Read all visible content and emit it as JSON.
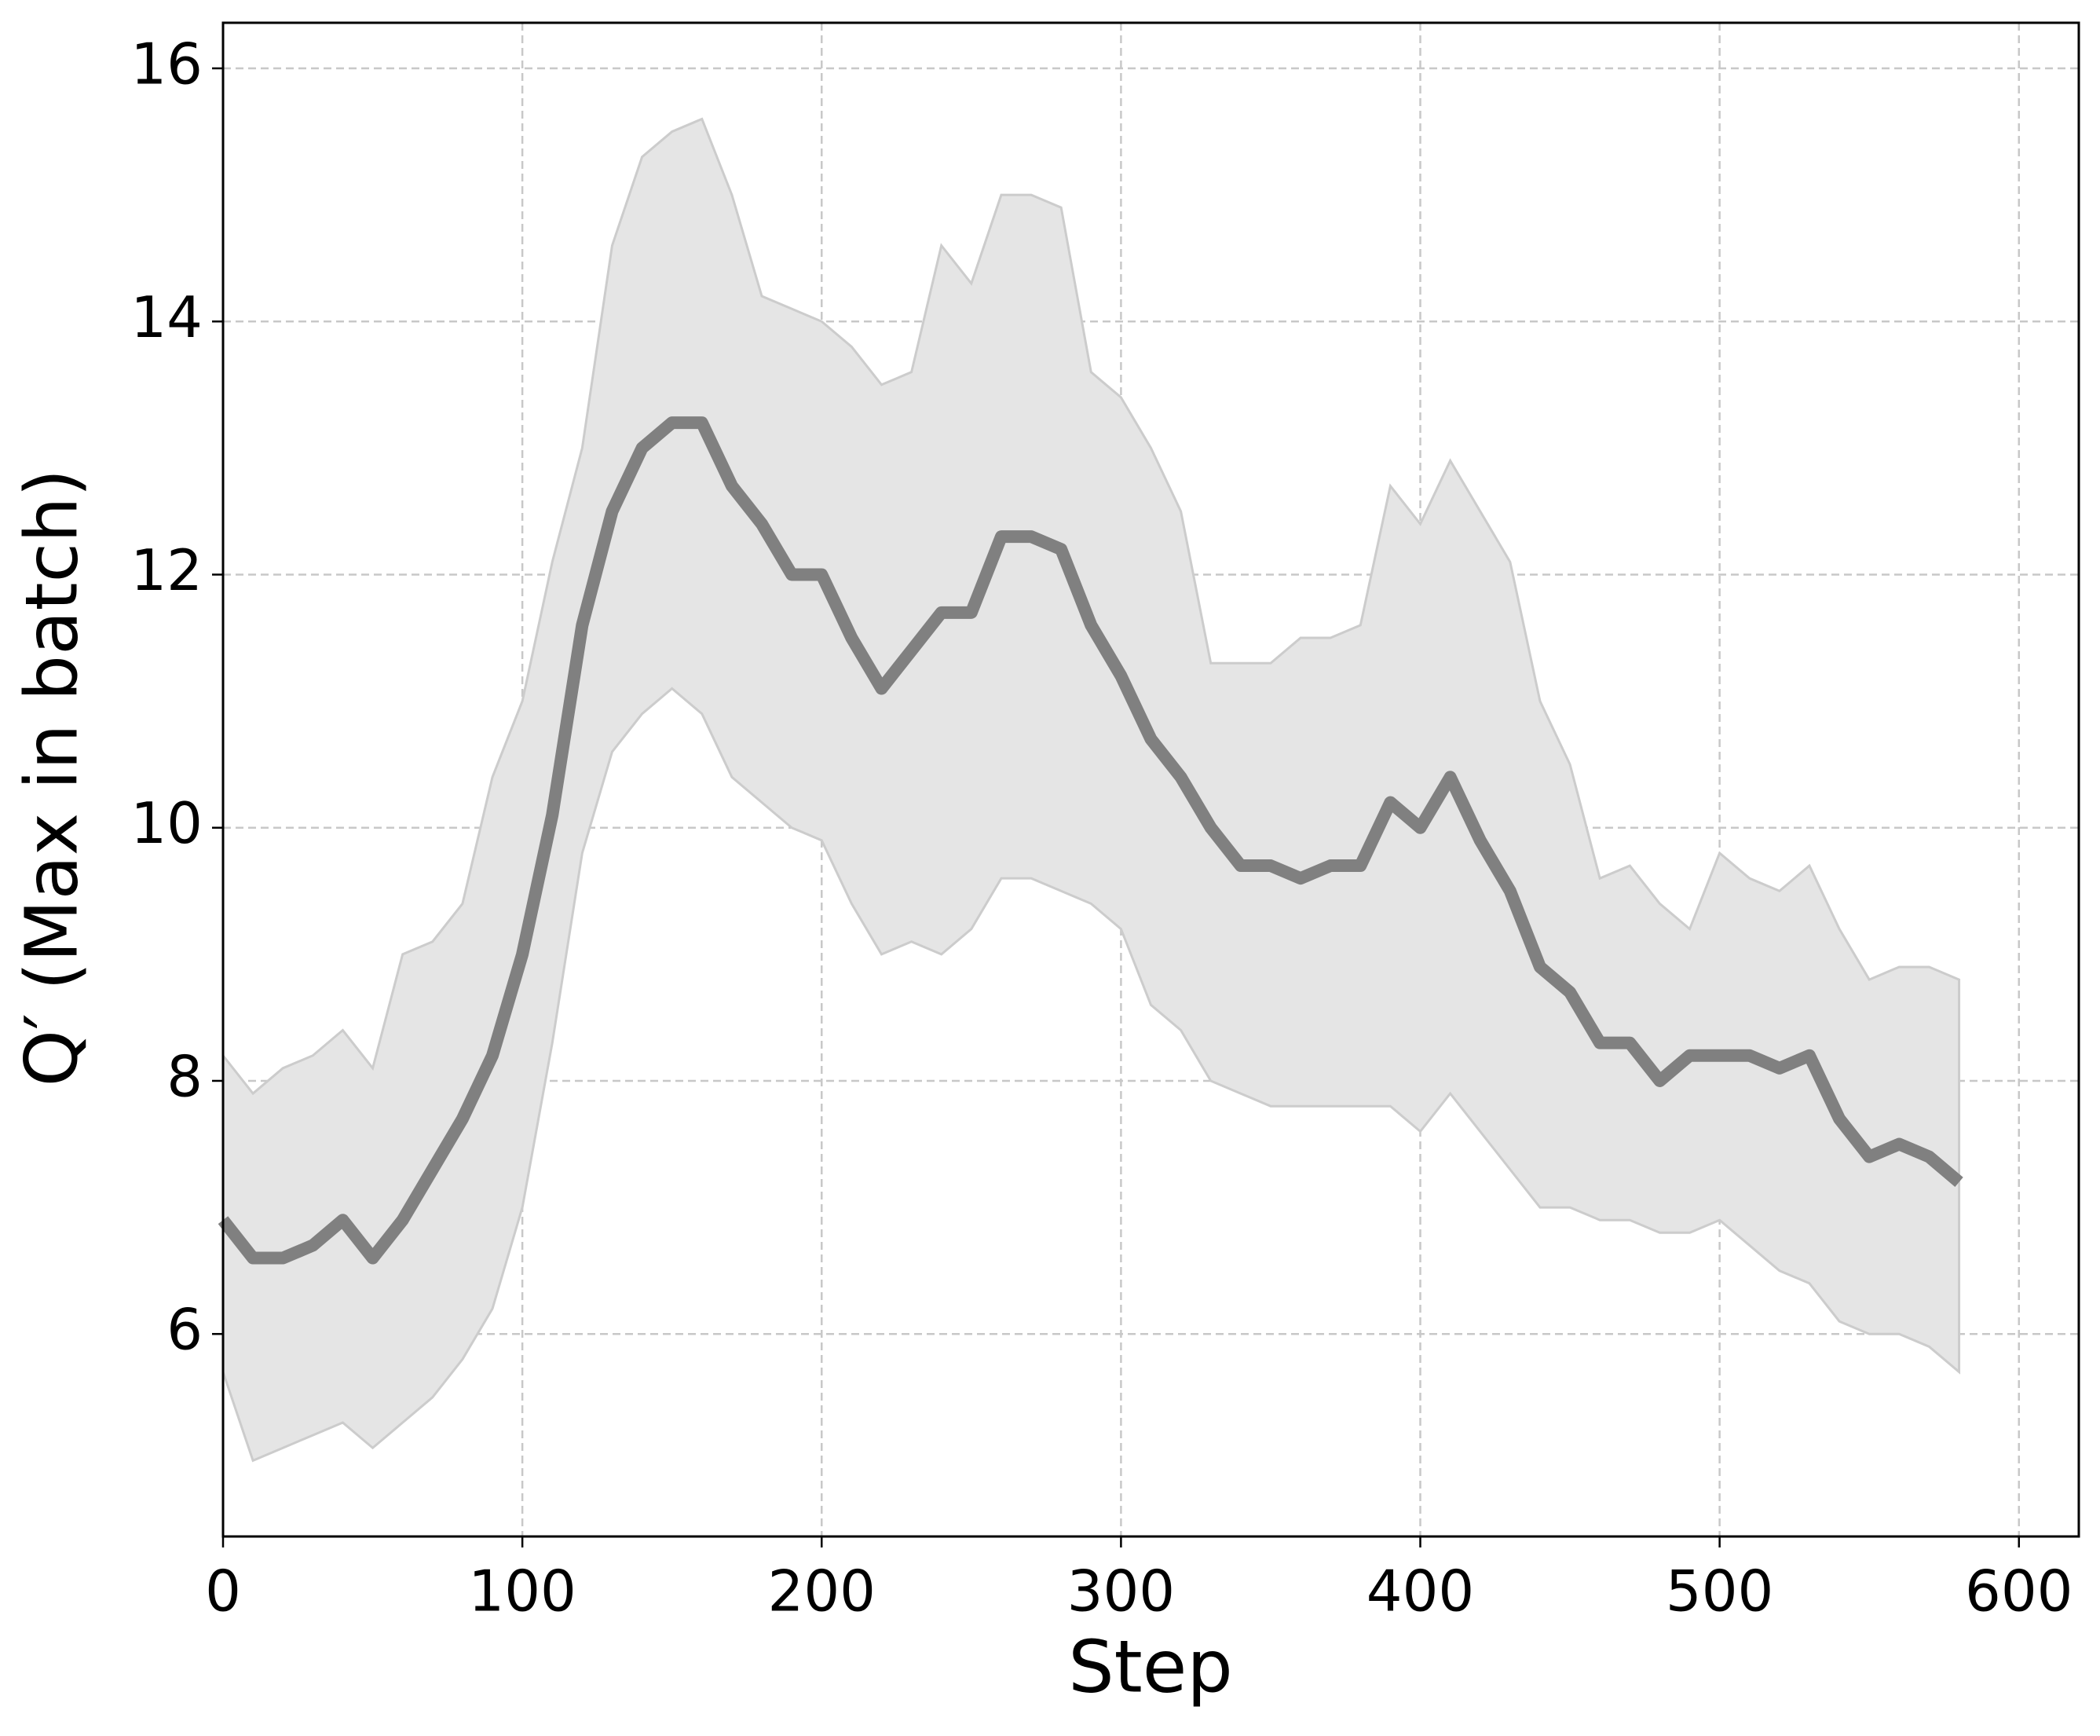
{
  "chart_data": {
    "type": "line",
    "xlabel": "Step",
    "ylabel": "Q′ (Max in batch)",
    "xlim": [
      0,
      620
    ],
    "xticks": [
      0,
      100,
      200,
      300,
      400,
      500,
      600
    ],
    "ylim": [
      4.4,
      16.36
    ],
    "yticks": [
      6,
      8,
      10,
      12,
      14,
      16
    ],
    "grid": true,
    "x": [
      0,
      10,
      20,
      30,
      40,
      50,
      60,
      70,
      80,
      90,
      100,
      110,
      120,
      130,
      140,
      150,
      160,
      170,
      180,
      190,
      200,
      210,
      220,
      230,
      240,
      250,
      260,
      270,
      280,
      290,
      300,
      310,
      320,
      330,
      340,
      350,
      360,
      370,
      380,
      390,
      400,
      410,
      420,
      430,
      440,
      450,
      460,
      470,
      480,
      490,
      500,
      510,
      520,
      530,
      540,
      550,
      560,
      570,
      580
    ],
    "series": [
      {
        "color": "#808080",
        "values": [
          6.9,
          6.6,
          6.6,
          6.7,
          6.9,
          6.6,
          6.9,
          7.3,
          7.7,
          8.2,
          9.0,
          10.1,
          11.6,
          12.5,
          13.0,
          13.2,
          13.2,
          12.7,
          12.4,
          12.0,
          12.0,
          11.5,
          11.1,
          11.4,
          11.7,
          11.7,
          12.3,
          12.3,
          12.2,
          11.6,
          11.2,
          10.7,
          10.4,
          10.0,
          9.7,
          9.7,
          9.6,
          9.7,
          9.7,
          10.2,
          10.0,
          10.4,
          9.9,
          9.5,
          8.9,
          8.7,
          8.3,
          8.3,
          8.0,
          8.2,
          8.2,
          8.2,
          8.1,
          8.2,
          7.7,
          7.4,
          7.5,
          7.4,
          7.2
        ]
      }
    ],
    "band": {
      "color": "#e5e5e5",
      "edge_color": "#cccccc",
      "upper": [
        8.2,
        7.9,
        8.1,
        8.2,
        8.4,
        8.1,
        9.0,
        9.1,
        9.4,
        10.4,
        11.0,
        12.1,
        13.0,
        14.6,
        15.3,
        15.5,
        15.6,
        15.0,
        14.2,
        14.1,
        14.0,
        13.8,
        13.5,
        13.6,
        14.6,
        14.3,
        15.0,
        15.0,
        14.9,
        13.6,
        13.4,
        13.0,
        12.5,
        11.3,
        11.3,
        11.3,
        11.5,
        11.5,
        11.6,
        12.7,
        12.4,
        12.9,
        12.5,
        12.1,
        11.0,
        10.5,
        9.6,
        9.7,
        9.4,
        9.2,
        9.8,
        9.6,
        9.5,
        9.7,
        9.2,
        8.8,
        8.9,
        8.9,
        8.8
      ],
      "lower": [
        5.7,
        5.0,
        5.1,
        5.2,
        5.3,
        5.1,
        5.3,
        5.5,
        5.8,
        6.2,
        7.0,
        8.3,
        9.8,
        10.6,
        10.9,
        11.1,
        10.9,
        10.4,
        10.2,
        10.0,
        9.9,
        9.4,
        9.0,
        9.1,
        9.0,
        9.2,
        9.6,
        9.6,
        9.5,
        9.4,
        9.2,
        8.6,
        8.4,
        8.0,
        7.9,
        7.8,
        7.8,
        7.8,
        7.8,
        7.8,
        7.6,
        7.9,
        7.6,
        7.3,
        7.0,
        7.0,
        6.9,
        6.9,
        6.8,
        6.8,
        6.9,
        6.7,
        6.5,
        6.4,
        6.1,
        6.0,
        6.0,
        5.9,
        5.7
      ]
    }
  }
}
